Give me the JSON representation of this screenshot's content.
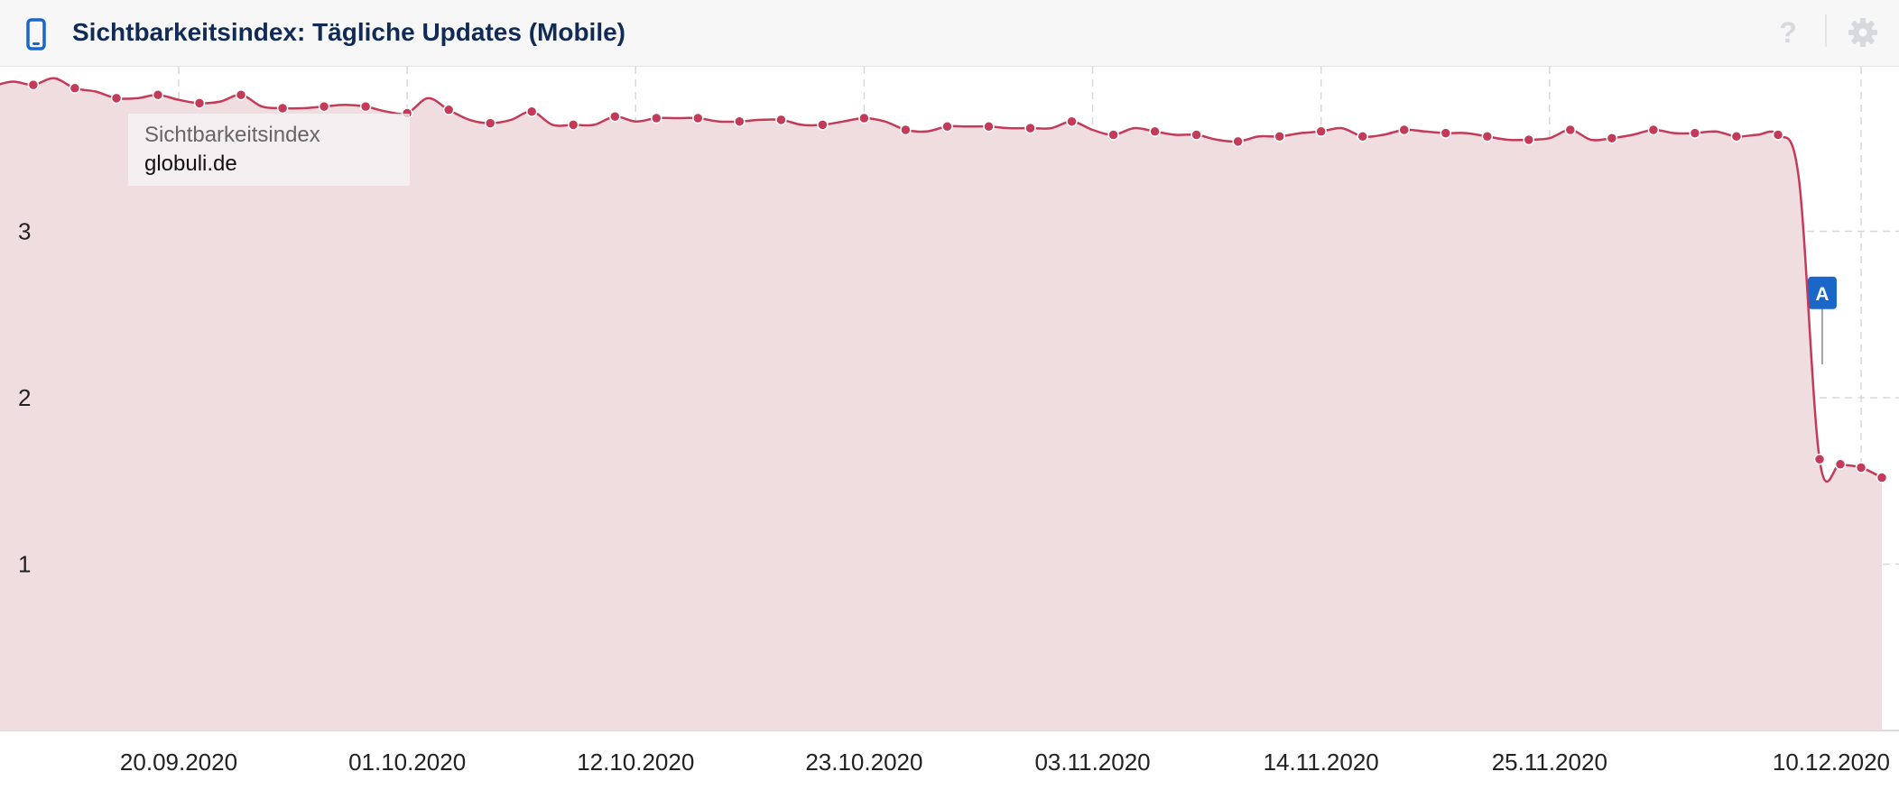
{
  "header": {
    "title": "Sichtbarkeitsindex: Tägliche Updates (Mobile)",
    "icons": {
      "left": "smartphone-icon",
      "help": "help-icon",
      "settings": "gear-icon"
    },
    "help_glyph": "?"
  },
  "tooltip": {
    "label": "Sichtbarkeitsindex",
    "value": "globuli.de"
  },
  "colors": {
    "line": "#c43a59",
    "area": "#f0dde0",
    "marker": "#c43a59",
    "annotation": "#1b66c9",
    "title": "#112b55",
    "grid": "#d8d8d8"
  },
  "chart_data": {
    "type": "area",
    "title": "Sichtbarkeitsindex: Tägliche Updates (Mobile)",
    "xlabel": "",
    "ylabel": "",
    "ylim": [
      0,
      4
    ],
    "yticks": [
      1,
      2,
      3
    ],
    "ytick_labels": [
      "1",
      "2",
      "3"
    ],
    "xlim": [
      "2020-09-11",
      "2020-12-11"
    ],
    "xticks": [
      "2020-09-20",
      "2020-10-01",
      "2020-10-12",
      "2020-10-23",
      "2020-11-03",
      "2020-11-14",
      "2020-11-25",
      "2020-12-10"
    ],
    "xtick_labels": [
      "20.09.2020",
      "01.10.2020",
      "12.10.2020",
      "23.10.2020",
      "03.11.2020",
      "14.11.2020",
      "25.11.2020",
      "10.12.2020"
    ],
    "grid": true,
    "legend": "none",
    "series": [
      {
        "name": "globuli.de",
        "points": [
          [
            "2020-09-11",
            3.87
          ],
          [
            "2020-09-12",
            3.9
          ],
          [
            "2020-09-13",
            3.88
          ],
          [
            "2020-09-14",
            3.92
          ],
          [
            "2020-09-15",
            3.86
          ],
          [
            "2020-09-16",
            3.84
          ],
          [
            "2020-09-17",
            3.8
          ],
          [
            "2020-09-18",
            3.8
          ],
          [
            "2020-09-19",
            3.82
          ],
          [
            "2020-09-20",
            3.79
          ],
          [
            "2020-09-21",
            3.77
          ],
          [
            "2020-09-22",
            3.78
          ],
          [
            "2020-09-23",
            3.82
          ],
          [
            "2020-09-24",
            3.75
          ],
          [
            "2020-09-25",
            3.74
          ],
          [
            "2020-09-26",
            3.74
          ],
          [
            "2020-09-27",
            3.75
          ],
          [
            "2020-09-28",
            3.76
          ],
          [
            "2020-09-29",
            3.75
          ],
          [
            "2020-09-30",
            3.72
          ],
          [
            "2020-10-01",
            3.71
          ],
          [
            "2020-10-02",
            3.8
          ],
          [
            "2020-10-03",
            3.73
          ],
          [
            "2020-10-04",
            3.67
          ],
          [
            "2020-10-05",
            3.65
          ],
          [
            "2020-10-06",
            3.67
          ],
          [
            "2020-10-07",
            3.72
          ],
          [
            "2020-10-08",
            3.64
          ],
          [
            "2020-10-09",
            3.64
          ],
          [
            "2020-10-10",
            3.64
          ],
          [
            "2020-10-11",
            3.69
          ],
          [
            "2020-10-12",
            3.66
          ],
          [
            "2020-10-13",
            3.68
          ],
          [
            "2020-10-14",
            3.68
          ],
          [
            "2020-10-15",
            3.68
          ],
          [
            "2020-10-16",
            3.66
          ],
          [
            "2020-10-17",
            3.66
          ],
          [
            "2020-10-18",
            3.67
          ],
          [
            "2020-10-19",
            3.67
          ],
          [
            "2020-10-20",
            3.64
          ],
          [
            "2020-10-21",
            3.64
          ],
          [
            "2020-10-22",
            3.66
          ],
          [
            "2020-10-23",
            3.68
          ],
          [
            "2020-10-24",
            3.66
          ],
          [
            "2020-10-25",
            3.61
          ],
          [
            "2020-10-26",
            3.6
          ],
          [
            "2020-10-27",
            3.63
          ],
          [
            "2020-10-28",
            3.63
          ],
          [
            "2020-10-29",
            3.63
          ],
          [
            "2020-10-30",
            3.62
          ],
          [
            "2020-10-31",
            3.62
          ],
          [
            "2020-11-01",
            3.62
          ],
          [
            "2020-11-02",
            3.66
          ],
          [
            "2020-11-03",
            3.61
          ],
          [
            "2020-11-04",
            3.58
          ],
          [
            "2020-11-05",
            3.62
          ],
          [
            "2020-11-06",
            3.6
          ],
          [
            "2020-11-07",
            3.58
          ],
          [
            "2020-11-08",
            3.58
          ],
          [
            "2020-11-09",
            3.55
          ],
          [
            "2020-11-10",
            3.54
          ],
          [
            "2020-11-11",
            3.57
          ],
          [
            "2020-11-12",
            3.57
          ],
          [
            "2020-11-13",
            3.59
          ],
          [
            "2020-11-14",
            3.6
          ],
          [
            "2020-11-15",
            3.62
          ],
          [
            "2020-11-16",
            3.57
          ],
          [
            "2020-11-17",
            3.58
          ],
          [
            "2020-11-18",
            3.61
          ],
          [
            "2020-11-19",
            3.6
          ],
          [
            "2020-11-20",
            3.59
          ],
          [
            "2020-11-21",
            3.59
          ],
          [
            "2020-11-22",
            3.57
          ],
          [
            "2020-11-23",
            3.55
          ],
          [
            "2020-11-24",
            3.55
          ],
          [
            "2020-11-25",
            3.56
          ],
          [
            "2020-11-26",
            3.61
          ],
          [
            "2020-11-27",
            3.55
          ],
          [
            "2020-11-28",
            3.56
          ],
          [
            "2020-11-29",
            3.58
          ],
          [
            "2020-11-30",
            3.61
          ],
          [
            "2020-12-01",
            3.59
          ],
          [
            "2020-12-02",
            3.59
          ],
          [
            "2020-12-03",
            3.6
          ],
          [
            "2020-12-04",
            3.57
          ],
          [
            "2020-12-05",
            3.58
          ],
          [
            "2020-12-06",
            3.58
          ],
          [
            "2020-12-07",
            3.32
          ],
          [
            "2020-12-08",
            1.63
          ],
          [
            "2020-12-09",
            1.6
          ],
          [
            "2020-12-10",
            1.58
          ],
          [
            "2020-12-11",
            1.52
          ]
        ]
      }
    ],
    "annotations": [
      {
        "label": "A",
        "x": "2020-12-07",
        "y": 2.63
      }
    ]
  }
}
